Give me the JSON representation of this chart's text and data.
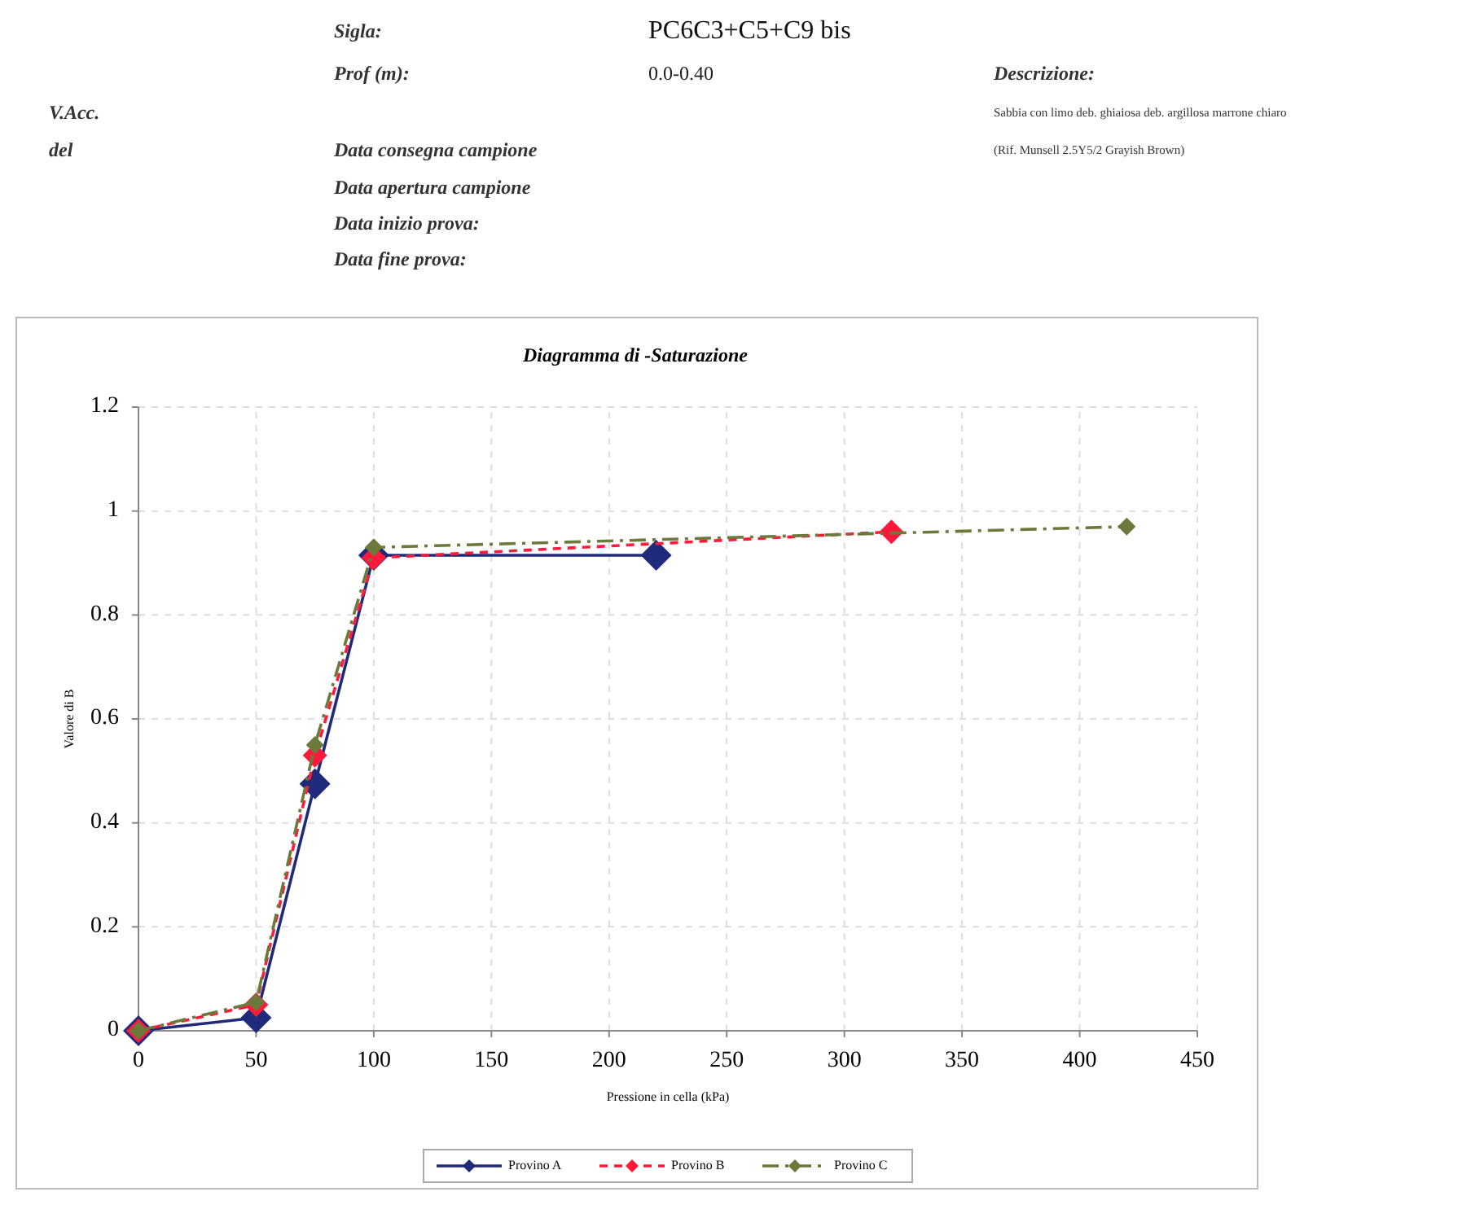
{
  "chart_data": {
    "type": "line",
    "title": "Diagramma di -Saturazione",
    "xlabel": "Pressione in cella (kPa)",
    "ylabel": "Valore di B",
    "annotations": [
      "Sigla:",
      "PC6C3+C5+C9 bis",
      "Prof (m):",
      "0.0-0.40",
      "Descrizione:",
      "V.Acc.",
      "Sabbia con limo deb. ghiaiosa deb. argillosa marrone chiaro",
      "del",
      "Data consegna campione",
      "(Rif. Munsell 2.5Y5/2 Grayish Brown)",
      "Data apertura campione",
      "Data inizio prova:",
      "Data fine prova:"
    ],
    "series": [
      {
        "name": "Provino A",
        "color": "#1f2a7a",
        "line_style": "solid",
        "x": [
          0,
          50,
          75,
          100,
          220
        ],
        "values": [
          0,
          0.025,
          0.475,
          0.915,
          0.915
        ]
      },
      {
        "name": "Provino B",
        "color": "#ff1a3c",
        "line_style": "dashed",
        "x": [
          0,
          50,
          75,
          100,
          320
        ],
        "values": [
          0,
          0.05,
          0.53,
          0.91,
          0.96
        ]
      },
      {
        "name": "Provino C",
        "color": "#6b7a3a",
        "line_style": "dashdot",
        "x": [
          0,
          50,
          75,
          100,
          420
        ],
        "values": [
          0,
          0.055,
          0.55,
          0.93,
          0.97
        ]
      }
    ],
    "xlim": [
      0,
      450
    ],
    "xticks": [
      0,
      50,
      100,
      150,
      200,
      250,
      300,
      350,
      400,
      450
    ],
    "ylim": [
      0,
      1.2
    ],
    "yticks": [
      0,
      0.2,
      0.4,
      0.6,
      0.8,
      1,
      1.2
    ],
    "grid": true,
    "marker": "diamond",
    "legend": "bottom"
  }
}
